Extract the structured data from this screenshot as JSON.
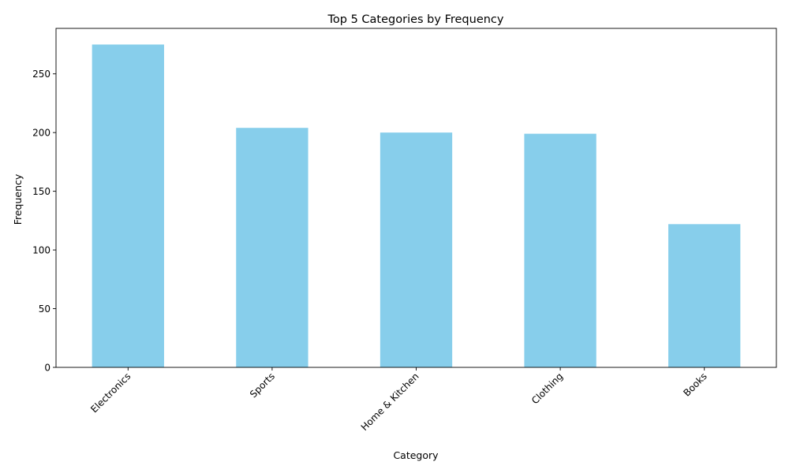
{
  "chart_data": {
    "type": "bar",
    "title": "Top 5 Categories by Frequency",
    "xlabel": "Category",
    "ylabel": "Frequency",
    "categories": [
      "Electronics",
      "Sports",
      "Home & Kitchen",
      "Clothing",
      "Books"
    ],
    "values": [
      275,
      204,
      200,
      199,
      122
    ],
    "ylim": [
      0,
      288.75
    ],
    "yticks": [
      0,
      50,
      100,
      150,
      200,
      250
    ],
    "bar_color": "#87ceeb",
    "grid": false,
    "xtick_rotation": 45
  }
}
